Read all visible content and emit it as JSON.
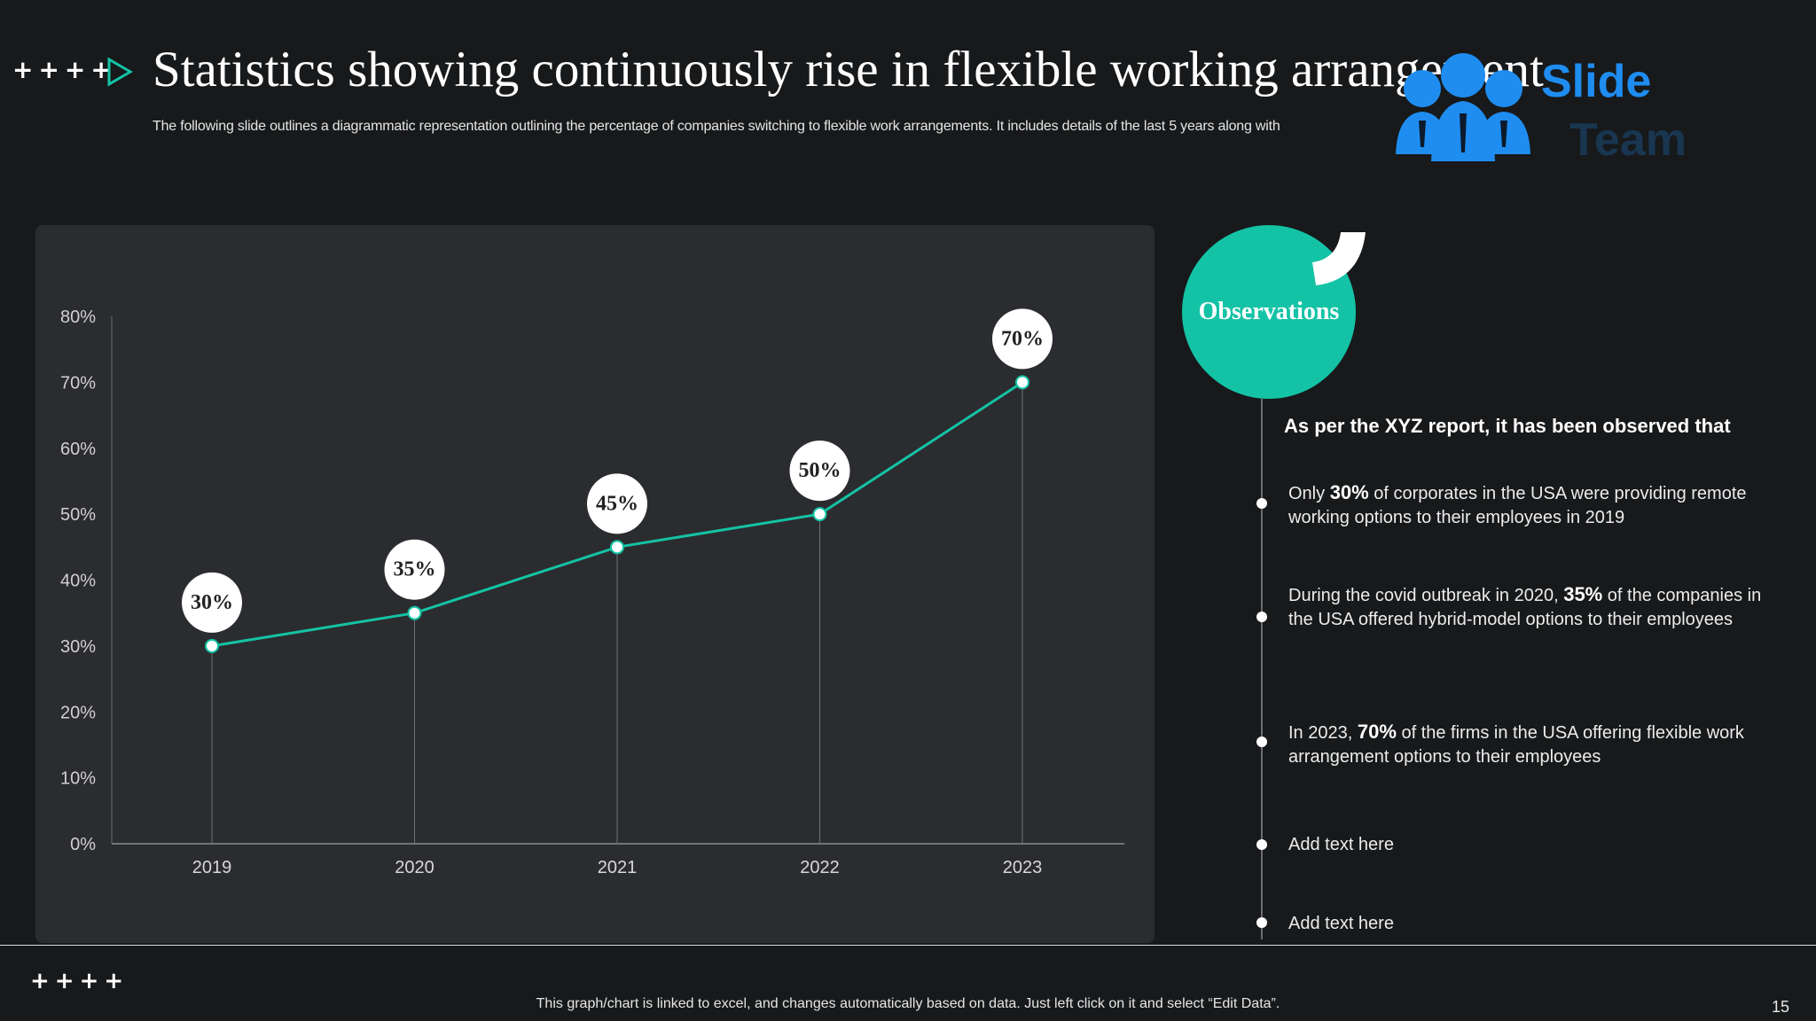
{
  "slide": {
    "title": "Statistics showing continuously rise in flexible working arrangement",
    "subtitle": "The following slide outlines a diagrammatic representation outlining the percentage of companies switching to flexible work arrangements. It includes details of the last 5 years along with",
    "top_decoration": "++++",
    "bottom_decoration": "++++",
    "logo": {
      "line1": "Slide",
      "line2": "Team",
      "icon": "team-people-icon",
      "color": "#1f8df0"
    },
    "footer_note": "This graph/chart is linked to excel, and changes automatically based on data. Just left click on it and select “Edit Data”.",
    "page_number": "15"
  },
  "observations": {
    "badge": "Observations",
    "lead": "As  per the XYZ report, it has  been observed that",
    "items": [
      {
        "pre": "Only ",
        "bold": "30%",
        "post": " of corporates in the USA were  providing remote working options to their employees in 2019"
      },
      {
        "pre": "During  the covid outbreak in 2020, ",
        "bold": "35%",
        "post": " of the companies in the USA offered  hybrid-model  options to their employees"
      },
      {
        "pre": "In 2023, ",
        "bold": "70%",
        "post": " of the firms in the USA offering flexible work arrangement  options to their employees"
      },
      {
        "pre": "Add text here",
        "bold": "",
        "post": ""
      },
      {
        "pre": "Add text here",
        "bold": "",
        "post": ""
      }
    ]
  },
  "colors": {
    "accent": "#14c3a5",
    "background": "#17191b",
    "panel": "#2b2c2f"
  },
  "chart_data": {
    "type": "line",
    "categories": [
      "2019",
      "2020",
      "2021",
      "2022",
      "2023"
    ],
    "series": [
      {
        "values": [
          30,
          35,
          45,
          50,
          70
        ]
      }
    ],
    "data_labels": [
      "30%",
      "35%",
      "45%",
      "50%",
      "70%"
    ],
    "y_ticks": [
      "0%",
      "10%",
      "20%",
      "30%",
      "40%",
      "50%",
      "60%",
      "70%",
      "80%"
    ],
    "ylim": [
      0,
      80
    ],
    "grid": false,
    "line_color": "#14c3a5",
    "title": "",
    "xlabel": "",
    "ylabel": ""
  }
}
